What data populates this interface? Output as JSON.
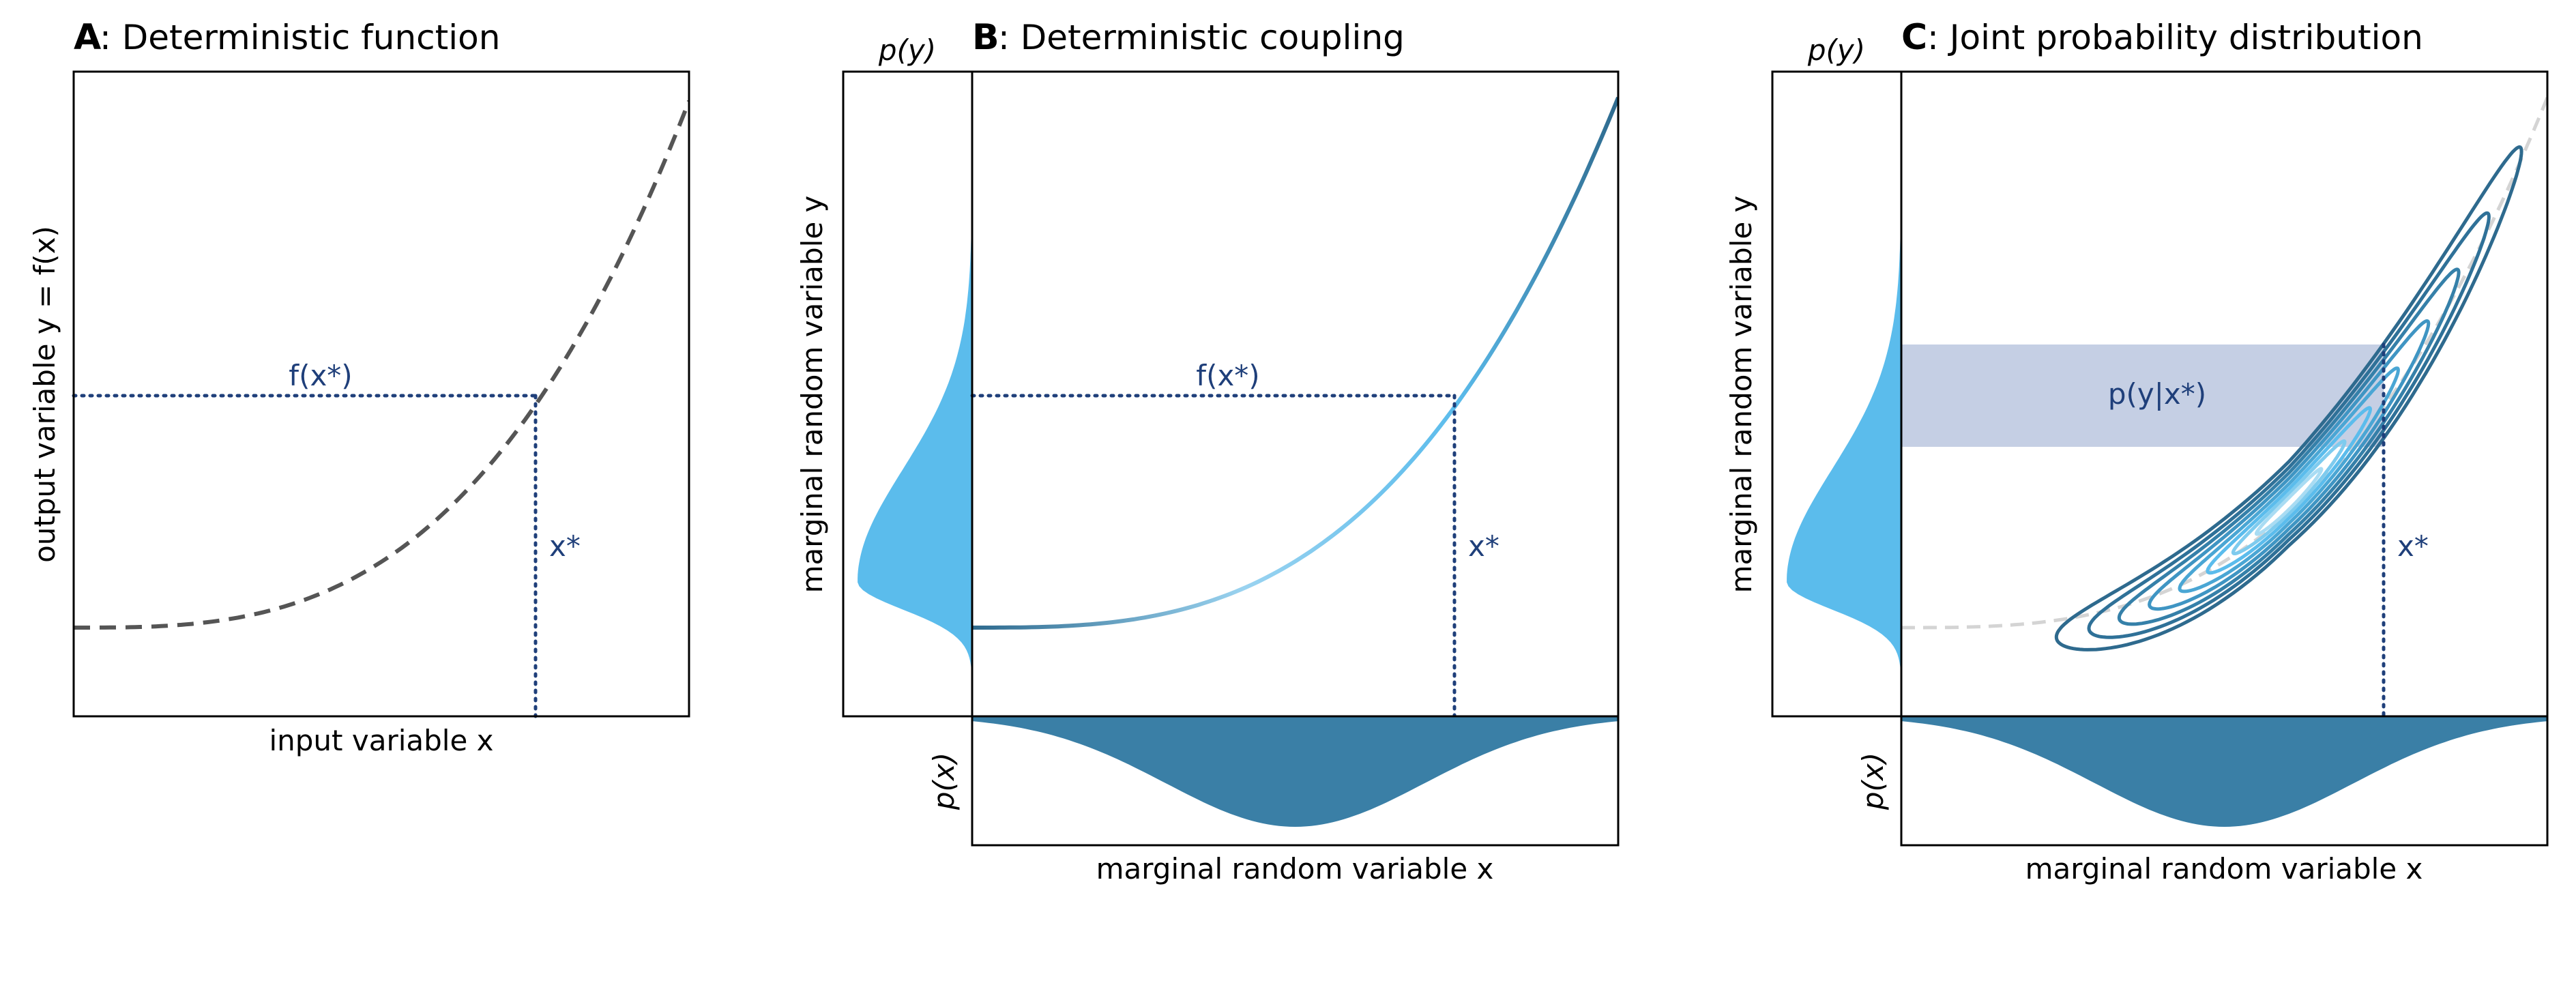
{
  "panels": [
    {
      "letter": "A",
      "title": ":  Deterministic function",
      "xlabel": "input variable x",
      "ylabel": "output variable y = f(x)",
      "annotations": {
        "fx": "f(x*)",
        "xstar": "x*"
      }
    },
    {
      "letter": "B",
      "title": ":  Deterministic coupling",
      "xlabel": "marginal random variable x",
      "ylabel": "marginal random variable y",
      "py_label": "p(y)",
      "px_label": "p(x)",
      "annotations": {
        "fx": "f(x*)",
        "xstar": "x*"
      }
    },
    {
      "letter": "C",
      "title": ":  Joint probability distribution",
      "xlabel": "marginal random variable x",
      "ylabel": "marginal random variable y",
      "py_label": "p(y)",
      "px_label": "p(x)",
      "annotations": {
        "conditional": "p(y|x*)",
        "xstar": "x*"
      }
    }
  ],
  "colors": {
    "dashed_curve": "#555555",
    "dark_blue": "#2e6a8e",
    "light_blue": "#5bbcec",
    "pale_blue": "#9ad3f0",
    "annotation": "#1f3f7a",
    "conditional_band": "#c5cfe4",
    "marginal_x_fill": "#3a7fa6",
    "marginal_y_fill": "#5bbcec"
  }
}
